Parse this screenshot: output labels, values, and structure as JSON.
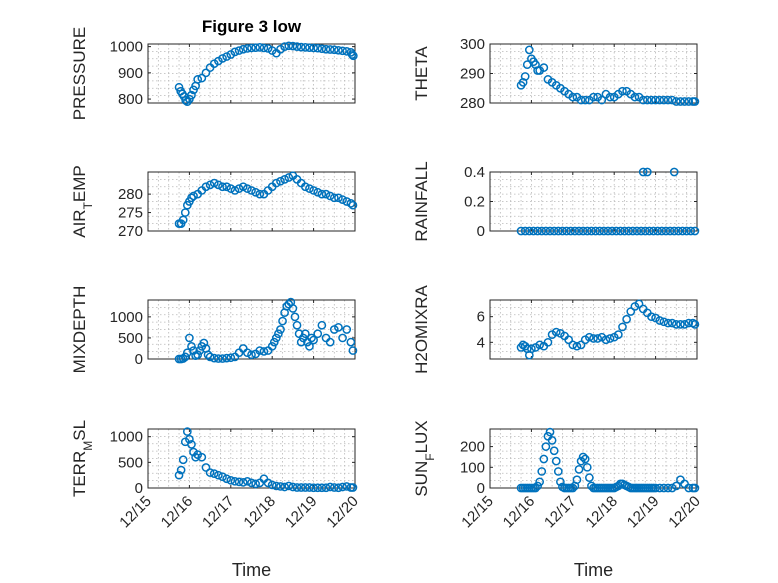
{
  "figure": {
    "title": "Figure 3 low",
    "marker_color": "#0072BD",
    "grid": true
  },
  "chart_data": [
    {
      "type": "scatter",
      "title": "Figure 3 low",
      "ylabel": "PRESSURE",
      "xlabel": "",
      "xlim": [
        0,
        5
      ],
      "xticks": [],
      "ylim": [
        785,
        1010
      ],
      "yticks": [
        800,
        900,
        1000
      ],
      "x": [
        0.75,
        0.79,
        0.83,
        0.87,
        0.91,
        0.95,
        1.0,
        1.05,
        1.1,
        1.15,
        1.2,
        1.3,
        1.4,
        1.5,
        1.6,
        1.7,
        1.8,
        1.9,
        2.0,
        2.1,
        2.2,
        2.3,
        2.4,
        2.5,
        2.6,
        2.7,
        2.8,
        2.9,
        3.0,
        3.1,
        3.2,
        3.3,
        3.4,
        3.5,
        3.6,
        3.7,
        3.8,
        3.9,
        4.0,
        4.1,
        4.2,
        4.3,
        4.4,
        4.5,
        4.6,
        4.7,
        4.8,
        4.9,
        4.93,
        4.96
      ],
      "y": [
        845,
        830,
        820,
        810,
        795,
        790,
        800,
        815,
        835,
        850,
        875,
        880,
        900,
        920,
        935,
        945,
        955,
        962,
        970,
        980,
        985,
        990,
        993,
        995,
        996,
        997,
        995,
        993,
        985,
        975,
        990,
        1000,
        1003,
        1002,
        1000,
        998,
        997,
        996,
        995,
        994,
        992,
        990,
        989,
        988,
        986,
        984,
        982,
        978,
        970,
        965
      ]
    },
    {
      "type": "scatter",
      "ylabel": "THETA",
      "xlabel": "",
      "xlim": [
        0,
        5
      ],
      "xticks": [],
      "ylim": [
        280,
        300
      ],
      "yticks": [
        280,
        290,
        300
      ],
      "x": [
        0.75,
        0.8,
        0.85,
        0.9,
        0.95,
        1.0,
        1.05,
        1.1,
        1.15,
        1.2,
        1.3,
        1.4,
        1.5,
        1.6,
        1.7,
        1.8,
        1.9,
        2.0,
        2.1,
        2.2,
        2.3,
        2.4,
        2.5,
        2.6,
        2.7,
        2.8,
        2.9,
        3.0,
        3.1,
        3.2,
        3.3,
        3.4,
        3.5,
        3.6,
        3.7,
        3.8,
        3.9,
        4.0,
        4.1,
        4.2,
        4.3,
        4.4,
        4.5,
        4.6,
        4.7,
        4.8,
        4.9,
        4.95
      ],
      "y": [
        286,
        287,
        289,
        293,
        298,
        295,
        294,
        293,
        291,
        291,
        292,
        288,
        287,
        286,
        285,
        284,
        283,
        282,
        282,
        281,
        281,
        281,
        282,
        282,
        281,
        283,
        282,
        282,
        283,
        284,
        284,
        283,
        282,
        282,
        281,
        281,
        281,
        281,
        281,
        281,
        281,
        281,
        280.5,
        280.5,
        280.5,
        280.5,
        280.5,
        280.5
      ]
    },
    {
      "type": "scatter",
      "ylabel": "AIR_TEMP",
      "ylabel_main": "AIR",
      "ylabel_sub": "T",
      "ylabel_rest": "EMP",
      "xlabel": "",
      "xlim": [
        0,
        5
      ],
      "xticks": [],
      "ylim": [
        270,
        286
      ],
      "yticks": [
        270,
        275,
        280
      ],
      "x": [
        0.75,
        0.8,
        0.85,
        0.9,
        0.95,
        1.0,
        1.05,
        1.1,
        1.2,
        1.3,
        1.4,
        1.5,
        1.6,
        1.7,
        1.8,
        1.9,
        2.0,
        2.1,
        2.2,
        2.3,
        2.4,
        2.5,
        2.6,
        2.7,
        2.8,
        2.9,
        3.0,
        3.1,
        3.2,
        3.3,
        3.4,
        3.5,
        3.6,
        3.7,
        3.8,
        3.9,
        4.0,
        4.1,
        4.2,
        4.3,
        4.4,
        4.5,
        4.6,
        4.7,
        4.8,
        4.9,
        4.95
      ],
      "y": [
        272,
        272,
        273,
        275,
        277,
        278,
        279,
        279.5,
        280,
        281,
        282,
        282.5,
        283,
        282.5,
        282,
        282,
        281.5,
        281,
        281.5,
        282,
        281.5,
        281,
        280.5,
        280,
        280,
        281,
        282,
        283,
        283.5,
        284,
        284.5,
        285,
        284,
        283,
        282,
        281.5,
        281,
        280.5,
        280,
        280,
        279.5,
        279,
        279,
        278.5,
        278,
        277.5,
        277
      ]
    },
    {
      "type": "scatter",
      "ylabel": "RAINFALL",
      "xlabel": "",
      "xlim": [
        0,
        5
      ],
      "xticks": [],
      "ylim": [
        0,
        0.4
      ],
      "yticks": [
        0,
        0.2,
        0.4
      ],
      "x": [
        0.75,
        0.85,
        0.95,
        1.05,
        1.15,
        1.25,
        1.35,
        1.45,
        1.55,
        1.65,
        1.75,
        1.85,
        1.95,
        2.05,
        2.15,
        2.25,
        2.35,
        2.45,
        2.55,
        2.65,
        2.75,
        2.85,
        2.95,
        3.05,
        3.15,
        3.25,
        3.35,
        3.45,
        3.55,
        3.65,
        3.75,
        3.85,
        3.95,
        4.05,
        4.15,
        4.25,
        4.35,
        4.45,
        4.55,
        4.65,
        4.75,
        4.85,
        4.95,
        3.7,
        3.8,
        4.45
      ],
      "y": [
        0,
        0,
        0,
        0,
        0,
        0,
        0,
        0,
        0,
        0,
        0,
        0,
        0,
        0,
        0,
        0,
        0,
        0,
        0,
        0,
        0,
        0,
        0,
        0,
        0,
        0,
        0,
        0,
        0,
        0,
        0,
        0,
        0,
        0,
        0,
        0,
        0,
        0,
        0,
        0,
        0,
        0,
        0,
        0.4,
        0.4,
        0.4
      ]
    },
    {
      "type": "scatter",
      "ylabel": "MIXDEPTH",
      "xlabel": "",
      "xlim": [
        0,
        5
      ],
      "xticks": [],
      "ylim": [
        0,
        1400
      ],
      "yticks": [
        0,
        500,
        1000
      ],
      "x": [
        0.75,
        0.8,
        0.85,
        0.9,
        0.95,
        1.0,
        1.05,
        1.1,
        1.15,
        1.2,
        1.25,
        1.3,
        1.35,
        1.4,
        1.45,
        1.5,
        1.6,
        1.7,
        1.8,
        1.9,
        2.0,
        2.1,
        2.2,
        2.3,
        2.4,
        2.5,
        2.6,
        2.7,
        2.8,
        2.9,
        3.0,
        3.05,
        3.1,
        3.15,
        3.2,
        3.25,
        3.3,
        3.35,
        3.4,
        3.45,
        3.5,
        3.55,
        3.6,
        3.65,
        3.7,
        3.75,
        3.8,
        3.85,
        3.9,
        3.95,
        4.0,
        4.1,
        4.2,
        4.3,
        4.4,
        4.5,
        4.6,
        4.7,
        4.8,
        4.9,
        4.95
      ],
      "y": [
        0,
        0,
        10,
        50,
        150,
        500,
        300,
        200,
        80,
        100,
        200,
        300,
        380,
        250,
        100,
        50,
        20,
        10,
        10,
        20,
        30,
        50,
        150,
        250,
        150,
        100,
        120,
        200,
        180,
        200,
        300,
        400,
        500,
        600,
        700,
        900,
        1100,
        1250,
        1300,
        1350,
        1200,
        1000,
        800,
        600,
        400,
        500,
        600,
        400,
        300,
        500,
        450,
        600,
        800,
        500,
        400,
        700,
        750,
        500,
        700,
        400,
        200
      ]
    },
    {
      "type": "scatter",
      "ylabel": "H2OMIXRA",
      "xlabel": "",
      "xlim": [
        0,
        5
      ],
      "xticks": [],
      "ylim": [
        2.7,
        7.3
      ],
      "yticks": [
        4,
        6
      ],
      "x": [
        0.75,
        0.8,
        0.85,
        0.9,
        0.95,
        1.0,
        1.1,
        1.2,
        1.3,
        1.4,
        1.5,
        1.6,
        1.7,
        1.8,
        1.9,
        2.0,
        2.1,
        2.2,
        2.3,
        2.4,
        2.5,
        2.6,
        2.7,
        2.8,
        2.9,
        3.0,
        3.1,
        3.2,
        3.3,
        3.4,
        3.5,
        3.6,
        3.7,
        3.8,
        3.9,
        4.0,
        4.1,
        4.2,
        4.3,
        4.4,
        4.5,
        4.6,
        4.7,
        4.8,
        4.9,
        4.95
      ],
      "y": [
        3.6,
        3.8,
        3.7,
        3.5,
        3.0,
        3.5,
        3.6,
        3.8,
        3.7,
        4.0,
        4.6,
        4.8,
        4.7,
        4.5,
        4.2,
        3.8,
        3.7,
        3.8,
        4.2,
        4.4,
        4.3,
        4.3,
        4.4,
        4.2,
        4.3,
        4.4,
        4.6,
        5.2,
        5.8,
        6.4,
        6.8,
        7.0,
        6.6,
        6.3,
        6.0,
        5.9,
        5.7,
        5.6,
        5.5,
        5.5,
        5.4,
        5.4,
        5.4,
        5.5,
        5.5,
        5.4
      ]
    },
    {
      "type": "scatter",
      "ylabel": "TERR_MSL",
      "ylabel_main": "TERR",
      "ylabel_sub": "M",
      "ylabel_rest": "SL",
      "xlabel": "Time",
      "xlim": [
        0,
        5
      ],
      "xticks": [
        "12/15",
        "12/16",
        "12/17",
        "12/18",
        "12/19",
        "12/20"
      ],
      "ylim": [
        0,
        1150
      ],
      "yticks": [
        0,
        500,
        1000
      ],
      "x": [
        0.75,
        0.8,
        0.85,
        0.9,
        0.95,
        1.0,
        1.05,
        1.1,
        1.15,
        1.2,
        1.3,
        1.4,
        1.5,
        1.6,
        1.7,
        1.8,
        1.9,
        2.0,
        2.1,
        2.2,
        2.3,
        2.4,
        2.5,
        2.6,
        2.7,
        2.8,
        2.9,
        3.0,
        3.1,
        3.2,
        3.3,
        3.4,
        3.5,
        3.6,
        3.7,
        3.8,
        3.9,
        4.0,
        4.1,
        4.2,
        4.3,
        4.4,
        4.5,
        4.6,
        4.7,
        4.8,
        4.9,
        4.95
      ],
      "y": [
        250,
        350,
        550,
        900,
        1100,
        950,
        850,
        700,
        600,
        650,
        600,
        400,
        300,
        280,
        250,
        220,
        180,
        150,
        130,
        120,
        110,
        130,
        100,
        80,
        100,
        180,
        100,
        60,
        40,
        30,
        20,
        40,
        20,
        10,
        10,
        10,
        10,
        5,
        5,
        5,
        5,
        20,
        10,
        5,
        20,
        30,
        10,
        10
      ]
    },
    {
      "type": "scatter",
      "ylabel": "SUN_FLUX",
      "ylabel_main": "SUN",
      "ylabel_sub": "F",
      "ylabel_rest": "LUX",
      "xlabel": "Time",
      "xlim": [
        0,
        5
      ],
      "xticks": [
        "12/15",
        "12/16",
        "12/17",
        "12/18",
        "12/19",
        "12/20"
      ],
      "ylim": [
        0,
        285
      ],
      "yticks": [
        0,
        100,
        200
      ],
      "x": [
        0.75,
        0.8,
        0.85,
        0.9,
        0.95,
        1.0,
        1.05,
        1.1,
        1.15,
        1.2,
        1.25,
        1.3,
        1.35,
        1.4,
        1.45,
        1.5,
        1.55,
        1.6,
        1.65,
        1.7,
        1.75,
        1.8,
        1.85,
        1.9,
        1.95,
        2.0,
        2.05,
        2.1,
        2.15,
        2.2,
        2.25,
        2.3,
        2.35,
        2.4,
        2.45,
        2.5,
        2.55,
        2.6,
        2.65,
        2.7,
        2.75,
        2.8,
        2.85,
        2.9,
        2.95,
        3.0,
        3.05,
        3.1,
        3.15,
        3.2,
        3.25,
        3.3,
        3.35,
        3.4,
        3.45,
        3.5,
        3.55,
        3.6,
        3.65,
        3.7,
        3.75,
        3.8,
        3.85,
        3.9,
        3.95,
        4.0,
        4.1,
        4.2,
        4.3,
        4.4,
        4.5,
        4.6,
        4.7,
        4.8,
        4.9,
        4.95
      ],
      "y": [
        0,
        0,
        0,
        0,
        0,
        0,
        0,
        0,
        10,
        30,
        80,
        140,
        200,
        250,
        270,
        230,
        180,
        130,
        80,
        30,
        5,
        0,
        0,
        0,
        0,
        0,
        10,
        40,
        90,
        130,
        150,
        140,
        100,
        50,
        10,
        0,
        0,
        0,
        0,
        0,
        0,
        0,
        0,
        0,
        0,
        0,
        5,
        10,
        20,
        20,
        15,
        10,
        5,
        0,
        0,
        0,
        0,
        0,
        0,
        0,
        0,
        0,
        0,
        0,
        0,
        0,
        0,
        0,
        0,
        0,
        10,
        40,
        20,
        0,
        0,
        0
      ]
    }
  ]
}
